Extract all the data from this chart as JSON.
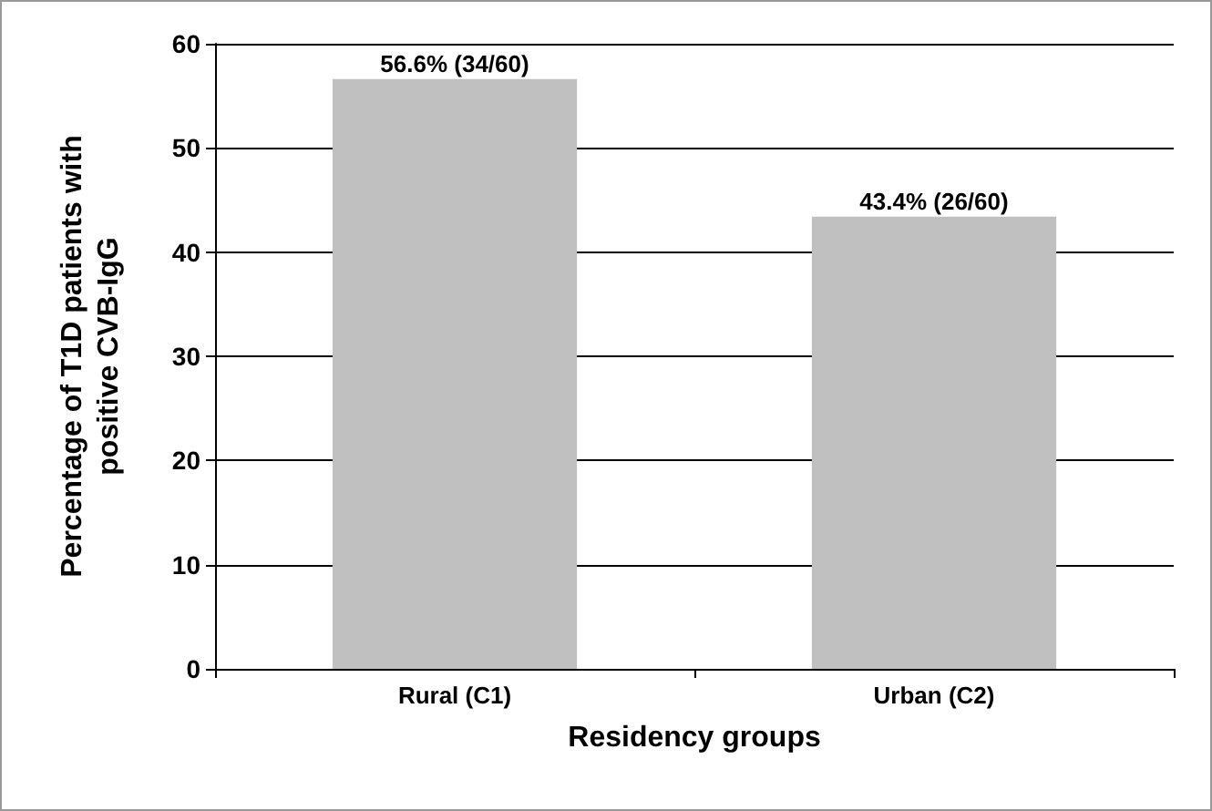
{
  "chart_data": {
    "type": "bar",
    "xlabel": "Residency groups",
    "ylabel": "Percentage of T1D patients with\npositive CVB-IgG",
    "categories": [
      "Rural (C1)",
      "Urban (C2)"
    ],
    "values": [
      56.6,
      43.4
    ],
    "value_labels": [
      "56.6% (34/60)",
      "43.4% (26/60)"
    ],
    "color": "#c0c0c0",
    "ylim": [
      0,
      60
    ],
    "yticks": [
      0,
      10,
      20,
      30,
      40,
      50,
      60
    ],
    "grid": "y"
  }
}
